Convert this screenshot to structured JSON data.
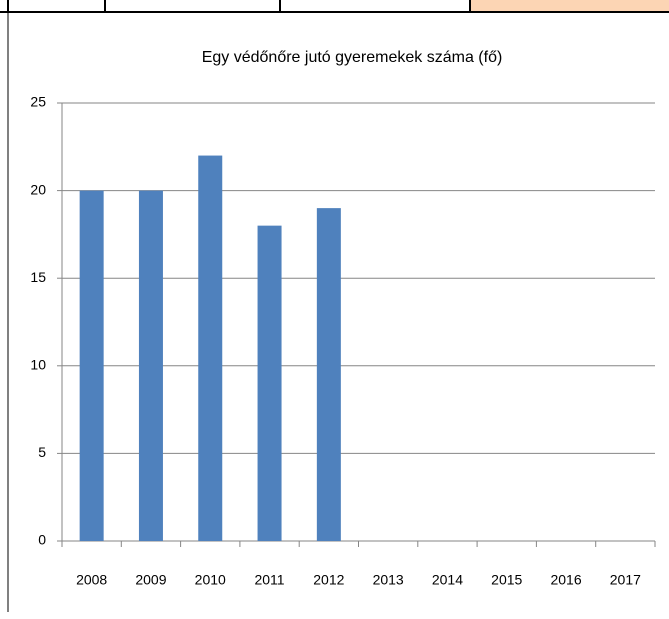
{
  "chart_data": {
    "type": "bar",
    "title": "Egy védőnőre jutó gyeremekek száma (fő)",
    "categories": [
      "2008",
      "2009",
      "2010",
      "2011",
      "2012",
      "2013",
      "2014",
      "2015",
      "2016",
      "2017"
    ],
    "values": [
      20,
      20,
      22,
      18,
      19,
      null,
      null,
      null,
      null,
      null
    ],
    "color": "#4f81bd",
    "ylim": [
      0,
      25
    ],
    "yticks": [
      0,
      5,
      10,
      15,
      20,
      25
    ],
    "grid": true
  }
}
